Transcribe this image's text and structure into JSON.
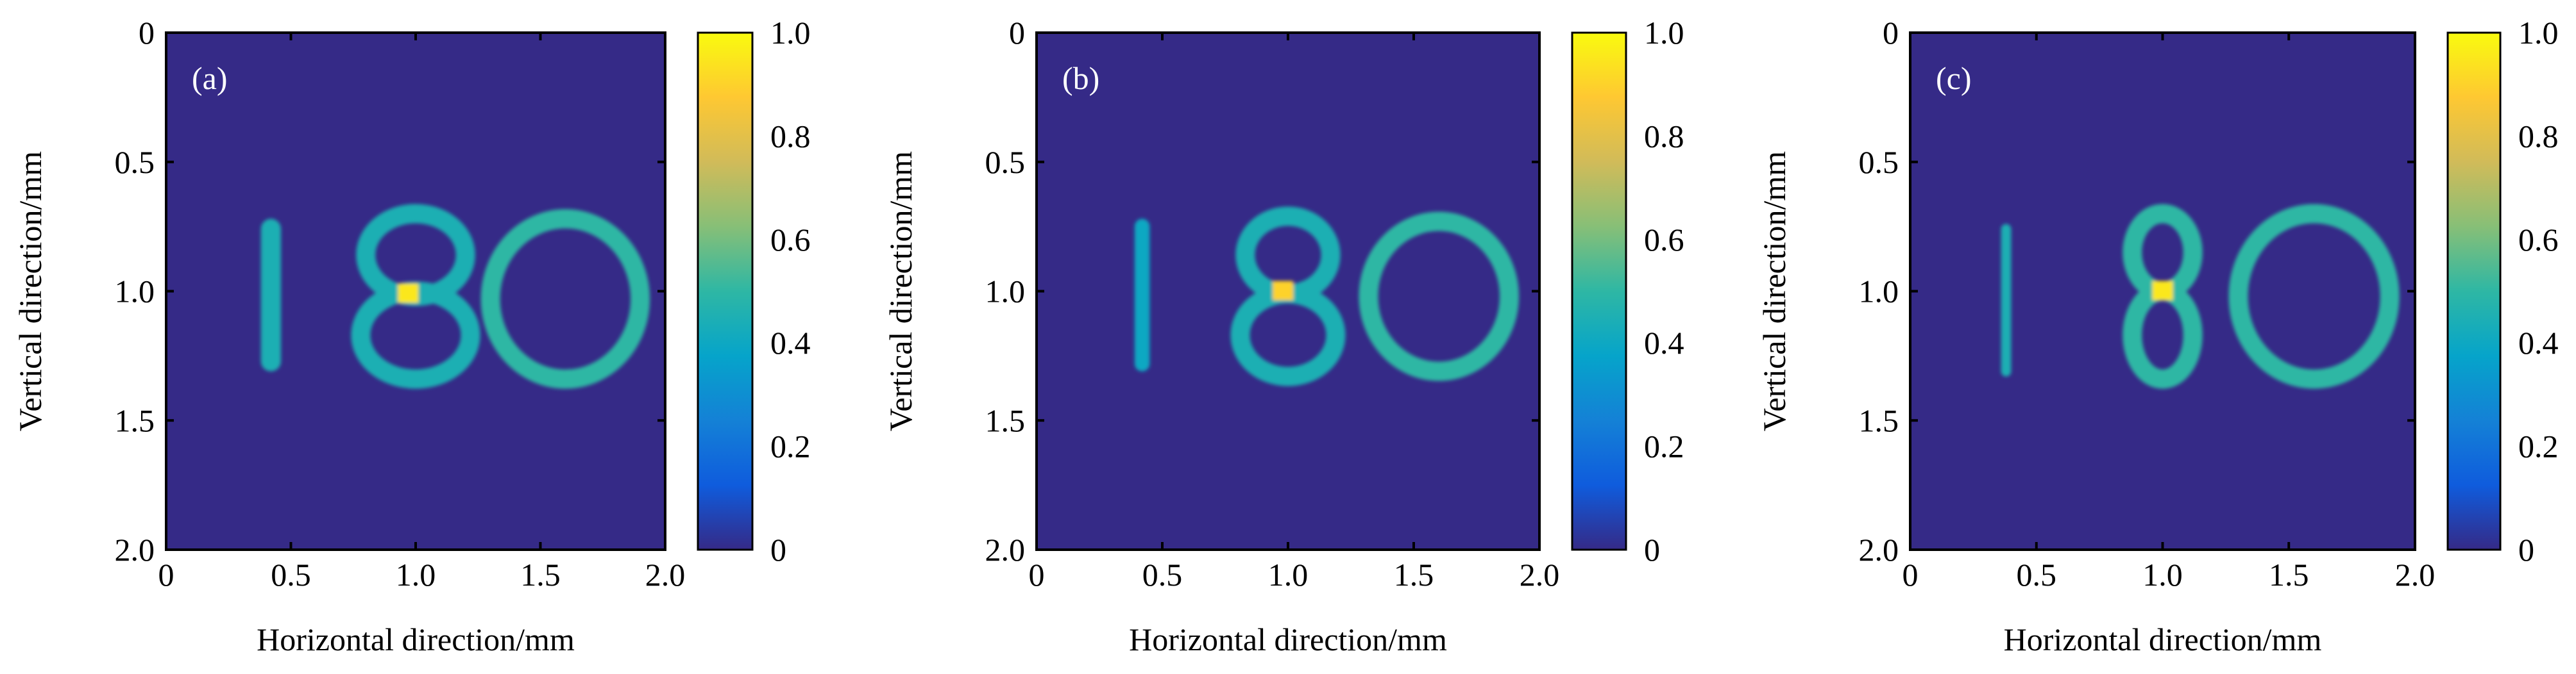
{
  "chart_data": [
    {
      "type": "heatmap",
      "panel_label": "(a)",
      "xlabel": "Horizontal direction/mm",
      "ylabel": "Vertical direction/mm",
      "xlim": [
        0,
        2.0
      ],
      "ylim": [
        0,
        2.0
      ],
      "xticks": [
        "0",
        "0.5",
        "1.0",
        "1.5",
        "2.0"
      ],
      "yticks": [
        "0",
        "0.5",
        "1.0",
        "1.5",
        "2.0"
      ],
      "colorbar": {
        "range": [
          0,
          1.0
        ],
        "ticks": [
          "0",
          "0.2",
          "0.4",
          "0.6",
          "0.8",
          "1.0"
        ]
      },
      "content": "reconstructed digits 1 8 0",
      "features": {
        "one": {
          "x": 0.42,
          "y0": 0.72,
          "y1": 1.31,
          "width": 0.08,
          "value": 0.45
        },
        "eight_top": {
          "cx": 1.0,
          "cy": 0.86,
          "rx": 0.2,
          "ry": 0.16,
          "value": 0.45
        },
        "eight_bottom": {
          "cx": 1.0,
          "cy": 1.17,
          "rx": 0.22,
          "ry": 0.17,
          "value": 0.45
        },
        "zero": {
          "cx": 1.6,
          "cy": 1.03,
          "rx": 0.3,
          "ry": 0.31,
          "value": 0.5
        },
        "hotspot": {
          "x": 0.97,
          "y": 1.01,
          "value": 0.95
        }
      }
    },
    {
      "type": "heatmap",
      "panel_label": "(b)",
      "xlabel": "Horizontal direction/mm",
      "ylabel": "Vertical direction/mm",
      "xlim": [
        0,
        2.0
      ],
      "ylim": [
        0,
        2.0
      ],
      "xticks": [
        "0",
        "0.5",
        "1.0",
        "1.5",
        "2.0"
      ],
      "yticks": [
        "0",
        "0.5",
        "1.0",
        "1.5",
        "2.0"
      ],
      "colorbar": {
        "range": [
          0,
          1.0
        ],
        "ticks": [
          "0",
          "0.2",
          "0.4",
          "0.6",
          "0.8",
          "1.0"
        ]
      },
      "content": "reconstructed digits 1 8 0",
      "features": {
        "one": {
          "x": 0.42,
          "y0": 0.72,
          "y1": 1.31,
          "width": 0.06,
          "value": 0.4
        },
        "eight_top": {
          "cx": 1.0,
          "cy": 0.86,
          "rx": 0.17,
          "ry": 0.15,
          "value": 0.45
        },
        "eight_bottom": {
          "cx": 1.0,
          "cy": 1.17,
          "rx": 0.19,
          "ry": 0.16,
          "value": 0.45
        },
        "zero": {
          "cx": 1.6,
          "cy": 1.02,
          "rx": 0.28,
          "ry": 0.29,
          "value": 0.5
        },
        "hotspot": {
          "x": 0.98,
          "y": 1.0,
          "value": 0.9
        }
      }
    },
    {
      "type": "heatmap",
      "panel_label": "(c)",
      "xlabel": "Horizontal direction/mm",
      "ylabel": "Vertical direction/mm",
      "xlim": [
        0,
        2.0
      ],
      "ylim": [
        0,
        2.0
      ],
      "xticks": [
        "0",
        "0.5",
        "1.0",
        "1.5",
        "2.0"
      ],
      "yticks": [
        "0",
        "0.5",
        "1.0",
        "1.5",
        "2.0"
      ],
      "colorbar": {
        "range": [
          0,
          1.0
        ],
        "ticks": [
          "0",
          "0.2",
          "0.4",
          "0.6",
          "0.8",
          "1.0"
        ]
      },
      "content": "reconstructed digits 1 8 0",
      "features": {
        "one": {
          "x": 0.38,
          "y0": 0.74,
          "y1": 1.33,
          "width": 0.04,
          "value": 0.45
        },
        "eight_top": {
          "cx": 1.0,
          "cy": 0.85,
          "rx": 0.12,
          "ry": 0.15,
          "value": 0.5
        },
        "eight_bottom": {
          "cx": 1.0,
          "cy": 1.17,
          "rx": 0.12,
          "ry": 0.17,
          "value": 0.5
        },
        "zero": {
          "cx": 1.6,
          "cy": 1.02,
          "rx": 0.3,
          "ry": 0.32,
          "value": 0.5
        },
        "hotspot": {
          "x": 1.0,
          "y": 1.0,
          "value": 0.95
        }
      }
    }
  ],
  "colors": {
    "colormap": [
      "#352a87",
      "#0f5cdd",
      "#1481d6",
      "#06a4ca",
      "#2eb7a4",
      "#87bf77",
      "#d1bb59",
      "#fec832",
      "#f9fb0e"
    ],
    "background": "#352a87"
  }
}
